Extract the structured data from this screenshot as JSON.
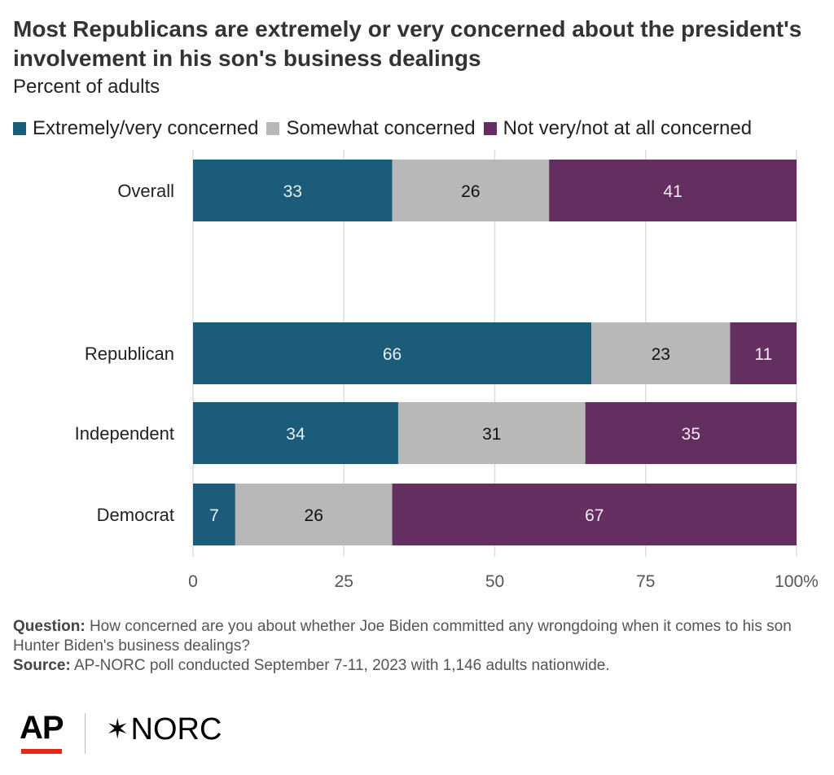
{
  "header": {
    "title": "Most Republicans are extremely or very concerned about the president's involvement in his son's business dealings",
    "subtitle": "Percent of adults"
  },
  "legend": [
    {
      "label": "Extremely/very concerned",
      "color": "#1a5c7a"
    },
    {
      "label": "Somewhat concerned",
      "color": "#b8b8b8"
    },
    {
      "label": "Not very/not at all concerned",
      "color": "#642f60"
    }
  ],
  "chart_data": {
    "type": "bar",
    "orientation": "horizontal",
    "stacked": true,
    "categories": [
      "Overall",
      "Republican",
      "Independent",
      "Democrat"
    ],
    "series": [
      {
        "name": "Extremely/very concerned",
        "values": [
          33,
          66,
          34,
          7
        ],
        "color": "#1a5c7a",
        "label_color": "#e8f0f3"
      },
      {
        "name": "Somewhat concerned",
        "values": [
          26,
          23,
          31,
          26
        ],
        "color": "#b8b8b8",
        "label_color": "#111111"
      },
      {
        "name": "Not very/not at all concerned",
        "values": [
          41,
          11,
          35,
          67
        ],
        "color": "#642f60",
        "label_color": "#f3eaf2"
      }
    ],
    "xlim": [
      0,
      100
    ],
    "x_ticks": [
      "0",
      "25",
      "50",
      "75",
      "100"
    ],
    "x_unit": "%",
    "grid": true,
    "legend_position": "top"
  },
  "notes": {
    "question_label": "Question:",
    "question_text": "How concerned are you about whether Joe Biden committed any wrongdoing when it comes to his son Hunter Biden's business dealings?",
    "source_label": "Source:",
    "source_text": "AP-NORC poll conducted September 7-11, 2023 with 1,146 adults nationwide."
  },
  "logos": {
    "ap": "AP",
    "norc": "NORC"
  }
}
